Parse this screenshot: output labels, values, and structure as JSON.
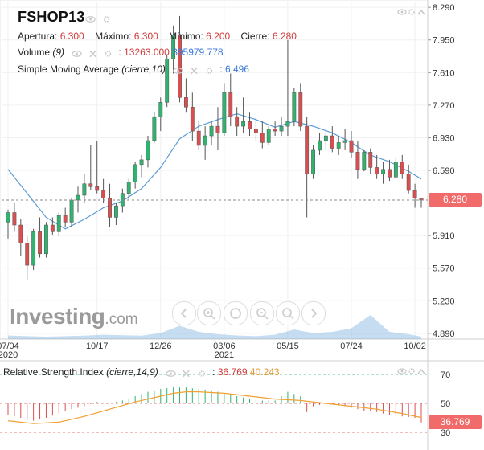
{
  "header": {
    "symbol": "FSHOP13",
    "apertura_label": "Apertura:",
    "apertura": "6.300",
    "maximo_label": "Máximo:",
    "maximo": "6.300",
    "minimo_label": "Mínimo:",
    "minimo": "6.200",
    "cierre_label": "Cierre:",
    "cierre": "6.280",
    "volume_label": "Volume",
    "volume_param": "(9)",
    "volume_value": "13263.000",
    "volume_avg": "395979.778",
    "sma_label": "Simple Moving Average",
    "sma_param": "(cierre,10)",
    "sma_value": "6.496"
  },
  "rsi": {
    "label": "Relative Strength Index",
    "param": "(cierre,14,9)",
    "value": "36.769",
    "signal": "40.243",
    "levels": [
      70,
      50,
      30
    ],
    "tag": "36.769"
  },
  "watermark": {
    "brand": "Investing",
    "suffix": ".com"
  },
  "icons": [
    "eye-icon",
    "close-icon",
    "gear-icon",
    "chevron-up-icon"
  ],
  "colors": {
    "up": "#2fb36f",
    "down": "#d94f4f",
    "sma": "#5b9bd5",
    "rsi_signal": "#f0a030",
    "price_tag": "#f26b6b"
  },
  "chart_data": {
    "type": "candlestick",
    "title": "FSHOP13",
    "y_ticks": [
      "8.290",
      "7.950",
      "7.610",
      "7.270",
      "6.930",
      "6.590",
      "6.250",
      "5.910",
      "5.570",
      "5.230",
      "4.890"
    ],
    "ylim": [
      4.83,
      8.35
    ],
    "last_price": "6.280",
    "x_ticks": [
      {
        "label": "07/04",
        "sub": "2020",
        "index": 0
      },
      {
        "label": "10/17",
        "sub": "",
        "index": 14
      },
      {
        "label": "12/26",
        "sub": "",
        "index": 24
      },
      {
        "label": "03/06",
        "sub": "2021",
        "index": 34
      },
      {
        "label": "05/15",
        "sub": "",
        "index": 44
      },
      {
        "label": "07/24",
        "sub": "",
        "index": 54
      },
      {
        "label": "10/02",
        "sub": "",
        "index": 64
      }
    ],
    "candles": [
      [
        6.05,
        6.18,
        5.88,
        6.15
      ],
      [
        6.15,
        6.25,
        5.95,
        6.02
      ],
      [
        6.02,
        6.08,
        5.7,
        5.83
      ],
      [
        5.83,
        5.9,
        5.45,
        5.6
      ],
      [
        5.6,
        5.98,
        5.55,
        5.95
      ],
      [
        5.95,
        6.1,
        5.68,
        5.72
      ],
      [
        5.72,
        6.05,
        5.68,
        6.02
      ],
      [
        6.02,
        6.1,
        5.92,
        5.95
      ],
      [
        5.95,
        6.15,
        5.9,
        6.12
      ],
      [
        6.12,
        6.2,
        6.0,
        6.05
      ],
      [
        6.05,
        6.3,
        6.0,
        6.28
      ],
      [
        6.28,
        6.42,
        6.15,
        6.33
      ],
      [
        6.33,
        6.55,
        6.25,
        6.45
      ],
      [
        6.45,
        6.85,
        6.38,
        6.42
      ],
      [
        6.42,
        6.9,
        6.35,
        6.38
      ],
      [
        6.38,
        6.5,
        6.25,
        6.3
      ],
      [
        6.3,
        6.45,
        6.0,
        6.1
      ],
      [
        6.1,
        6.25,
        6.02,
        6.22
      ],
      [
        6.22,
        6.4,
        6.15,
        6.35
      ],
      [
        6.35,
        6.5,
        6.28,
        6.47
      ],
      [
        6.47,
        6.68,
        6.4,
        6.65
      ],
      [
        6.65,
        6.75,
        6.52,
        6.7
      ],
      [
        6.7,
        6.95,
        6.62,
        6.9
      ],
      [
        6.9,
        7.2,
        6.88,
        7.15
      ],
      [
        7.15,
        7.35,
        7.0,
        7.3
      ],
      [
        7.3,
        7.8,
        7.25,
        7.75
      ],
      [
        7.75,
        8.1,
        7.6,
        8.0
      ],
      [
        8.0,
        8.2,
        7.3,
        7.35
      ],
      [
        7.35,
        7.55,
        7.2,
        7.25
      ],
      [
        7.25,
        7.4,
        6.9,
        7.0
      ],
      [
        7.0,
        7.1,
        6.8,
        6.85
      ],
      [
        6.85,
        7.05,
        6.7,
        6.95
      ],
      [
        6.95,
        7.1,
        6.85,
        7.05
      ],
      [
        7.05,
        7.25,
        6.8,
        6.98
      ],
      [
        6.98,
        7.5,
        6.95,
        7.4
      ],
      [
        7.4,
        7.6,
        7.05,
        7.15
      ],
      [
        7.15,
        7.25,
        6.95,
        7.05
      ],
      [
        7.05,
        7.35,
        6.98,
        7.1
      ],
      [
        7.1,
        7.2,
        6.95,
        7.02
      ],
      [
        7.02,
        7.15,
        6.9,
        6.98
      ],
      [
        6.98,
        7.1,
        6.82,
        6.88
      ],
      [
        6.88,
        7.05,
        6.85,
        7.02
      ],
      [
        7.02,
        7.1,
        6.95,
        7.0
      ],
      [
        7.0,
        7.15,
        6.95,
        7.05
      ],
      [
        7.05,
        7.95,
        6.95,
        7.1
      ],
      [
        7.1,
        7.45,
        7.05,
        7.4
      ],
      [
        7.4,
        7.5,
        7.0,
        7.05
      ],
      [
        7.05,
        7.15,
        6.1,
        6.55
      ],
      [
        6.55,
        6.85,
        6.5,
        6.8
      ],
      [
        6.8,
        6.98,
        6.75,
        6.9
      ],
      [
        6.9,
        7.0,
        6.8,
        6.95
      ],
      [
        6.95,
        7.05,
        6.78,
        6.82
      ],
      [
        6.82,
        6.95,
        6.75,
        6.88
      ],
      [
        6.88,
        7.02,
        6.8,
        6.9
      ],
      [
        6.9,
        7.0,
        6.72,
        6.78
      ],
      [
        6.78,
        6.9,
        6.5,
        6.6
      ],
      [
        6.6,
        6.8,
        6.58,
        6.78
      ],
      [
        6.78,
        6.82,
        6.55,
        6.62
      ],
      [
        6.62,
        6.75,
        6.5,
        6.55
      ],
      [
        6.55,
        6.68,
        6.45,
        6.6
      ],
      [
        6.6,
        6.7,
        6.48,
        6.52
      ],
      [
        6.52,
        6.72,
        6.5,
        6.68
      ],
      [
        6.68,
        6.75,
        6.5,
        6.55
      ],
      [
        6.55,
        6.65,
        6.35,
        6.38
      ],
      [
        6.38,
        6.45,
        6.2,
        6.3
      ],
      [
        6.3,
        6.3,
        6.2,
        6.28
      ]
    ],
    "sma": [
      [
        0,
        6.6
      ],
      [
        3,
        6.35
      ],
      [
        6,
        6.1
      ],
      [
        9,
        5.98
      ],
      [
        12,
        6.08
      ],
      [
        15,
        6.2
      ],
      [
        18,
        6.27
      ],
      [
        21,
        6.4
      ],
      [
        24,
        6.62
      ],
      [
        27,
        6.92
      ],
      [
        30,
        7.05
      ],
      [
        33,
        7.12
      ],
      [
        36,
        7.18
      ],
      [
        39,
        7.12
      ],
      [
        42,
        7.04
      ],
      [
        45,
        7.1
      ],
      [
        48,
        7.05
      ],
      [
        51,
        6.98
      ],
      [
        54,
        6.88
      ],
      [
        57,
        6.75
      ],
      [
        60,
        6.68
      ],
      [
        63,
        6.58
      ],
      [
        65,
        6.5
      ]
    ],
    "volume": [
      [
        0,
        0.15
      ],
      [
        3,
        0.12
      ],
      [
        6,
        0.1
      ],
      [
        9,
        0.12
      ],
      [
        12,
        0.14
      ],
      [
        15,
        0.18
      ],
      [
        18,
        0.16
      ],
      [
        21,
        0.14
      ],
      [
        24,
        0.25
      ],
      [
        27,
        0.55
      ],
      [
        30,
        0.3
      ],
      [
        33,
        0.2
      ],
      [
        36,
        0.15
      ],
      [
        39,
        0.12
      ],
      [
        42,
        0.18
      ],
      [
        45,
        0.4
      ],
      [
        48,
        0.25
      ],
      [
        51,
        0.3
      ],
      [
        54,
        0.45
      ],
      [
        57,
        1.0
      ],
      [
        60,
        0.3
      ],
      [
        63,
        0.2
      ],
      [
        65,
        0.1
      ]
    ],
    "rsi": [
      [
        0,
        42
      ],
      [
        2,
        40
      ],
      [
        4,
        38
      ],
      [
        6,
        40
      ],
      [
        8,
        43
      ],
      [
        10,
        46
      ],
      [
        12,
        48
      ],
      [
        14,
        51
      ],
      [
        16,
        50
      ],
      [
        18,
        52
      ],
      [
        20,
        55
      ],
      [
        22,
        58
      ],
      [
        24,
        60
      ],
      [
        26,
        61
      ],
      [
        28,
        61
      ],
      [
        30,
        60
      ],
      [
        32,
        59
      ],
      [
        34,
        57
      ],
      [
        36,
        55
      ],
      [
        38,
        53
      ],
      [
        40,
        52
      ],
      [
        42,
        52
      ],
      [
        44,
        58
      ],
      [
        46,
        55
      ],
      [
        47,
        44
      ],
      [
        48,
        48
      ],
      [
        50,
        50
      ],
      [
        52,
        49
      ],
      [
        54,
        47
      ],
      [
        56,
        45
      ],
      [
        58,
        44
      ],
      [
        60,
        42
      ],
      [
        62,
        41
      ],
      [
        64,
        40
      ],
      [
        65,
        36.8
      ]
    ],
    "rsi_signal": [
      [
        0,
        38
      ],
      [
        4,
        36
      ],
      [
        8,
        37
      ],
      [
        12,
        41
      ],
      [
        16,
        46
      ],
      [
        20,
        51
      ],
      [
        24,
        55
      ],
      [
        26,
        57
      ],
      [
        28,
        58
      ],
      [
        30,
        58
      ],
      [
        34,
        57
      ],
      [
        38,
        55
      ],
      [
        42,
        53
      ],
      [
        46,
        52
      ],
      [
        50,
        50
      ],
      [
        54,
        48
      ],
      [
        58,
        46
      ],
      [
        62,
        43
      ],
      [
        65,
        40.2
      ]
    ]
  }
}
